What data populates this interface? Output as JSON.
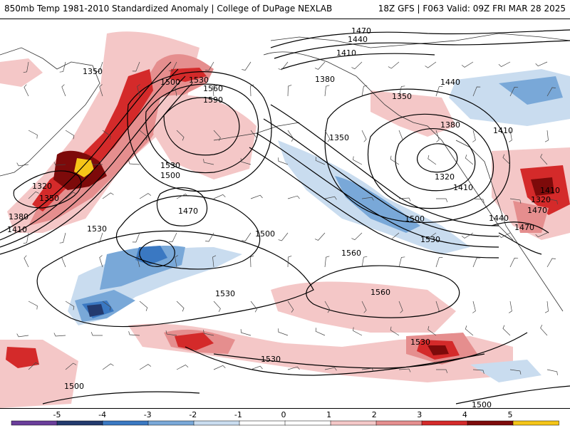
{
  "header": {
    "title_left": "850mb Temp 1981-2010 Standardized Anomaly | College of DuPage NEXLAB",
    "title_right": "18Z GFS | F063 Valid: 09Z FRI MAR 28 2025"
  },
  "colorbar": {
    "tick_labels": [
      "-5",
      "-4",
      "-3",
      "-2",
      "-1",
      "0",
      "1",
      "2",
      "3",
      "4",
      "5"
    ],
    "colors": [
      "#6a3d9a",
      "#233a6e",
      "#3a78c2",
      "#79a8d8",
      "#c9dcef",
      "#ffffff",
      "#ffffff",
      "#f4c7c7",
      "#e58e8e",
      "#d42a2a",
      "#7d0a0a",
      "#f5c518"
    ]
  },
  "contour_labels": [
    "1350",
    "1530",
    "1560",
    "1590",
    "1500",
    "1470",
    "1440",
    "1410",
    "1380",
    "1350",
    "1320",
    "1350",
    "1380",
    "1410",
    "1530",
    "1500",
    "1470",
    "1530",
    "1500",
    "1380",
    "1350",
    "1320",
    "1410",
    "1500",
    "1530",
    "1560",
    "1560",
    "1530",
    "1530",
    "1530",
    "1500",
    "1500",
    "1440",
    "1410",
    "1470",
    "1440",
    "1470",
    "1410",
    "1320"
  ],
  "colors": {
    "warm_light": "#f4c7c7",
    "warm_mid": "#e58e8e",
    "warm_strong": "#d42a2a",
    "warm_extreme": "#7d0a0a",
    "warm_max": "#f5c518",
    "cold_light": "#c9dcef",
    "cold_mid": "#79a8d8",
    "cold_strong": "#3a78c2",
    "cold_extreme": "#233a6e"
  }
}
